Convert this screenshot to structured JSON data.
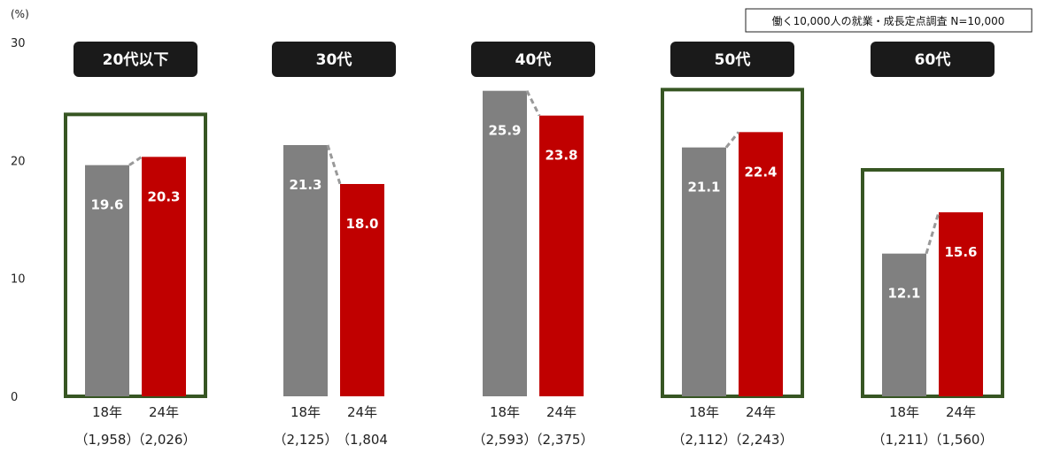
{
  "chart_data": {
    "type": "bar",
    "unit_label": "(%)",
    "source_note": "働く10,000人の就業・成長定点調査 N=10,000",
    "ylim": [
      0,
      30
    ],
    "yticks": [
      "0",
      "10",
      "20",
      "30"
    ],
    "grid": false,
    "colors": {
      "2018": "#808080",
      "2024": "#c00000",
      "highlight_box": "#375623",
      "label_box": "#1a1a1a",
      "connector": "#999999"
    },
    "groups": [
      {
        "label": "20代以下",
        "highlighted": true,
        "bars": [
          {
            "year_label": "18年",
            "value": 19.6,
            "value_label": "19.6",
            "n_label": "（1,958）"
          },
          {
            "year_label": "24年",
            "value": 20.3,
            "value_label": "20.3",
            "n_label": "（2,026）"
          }
        ]
      },
      {
        "label": "30代",
        "highlighted": false,
        "bars": [
          {
            "year_label": "18年",
            "value": 21.3,
            "value_label": "21.3",
            "n_label": "（2,125）"
          },
          {
            "year_label": "24年",
            "value": 18.0,
            "value_label": "18.0",
            "n_label": "（1,804"
          }
        ]
      },
      {
        "label": "40代",
        "highlighted": false,
        "bars": [
          {
            "year_label": "18年",
            "value": 25.9,
            "value_label": "25.9",
            "n_label": "（2,593）"
          },
          {
            "year_label": "24年",
            "value": 23.8,
            "value_label": "23.8",
            "n_label": "（2,375）"
          }
        ]
      },
      {
        "label": "50代",
        "highlighted": true,
        "bars": [
          {
            "year_label": "18年",
            "value": 21.1,
            "value_label": "21.1",
            "n_label": "（2,112）"
          },
          {
            "year_label": "24年",
            "value": 22.4,
            "value_label": "22.4",
            "n_label": "（2,243）"
          }
        ]
      },
      {
        "label": "60代",
        "highlighted": true,
        "bars": [
          {
            "year_label": "18年",
            "value": 12.1,
            "value_label": "12.1",
            "n_label": "（1,211）"
          },
          {
            "year_label": "24年",
            "value": 15.6,
            "value_label": "15.6",
            "n_label": "（1,560）"
          }
        ]
      }
    ]
  }
}
